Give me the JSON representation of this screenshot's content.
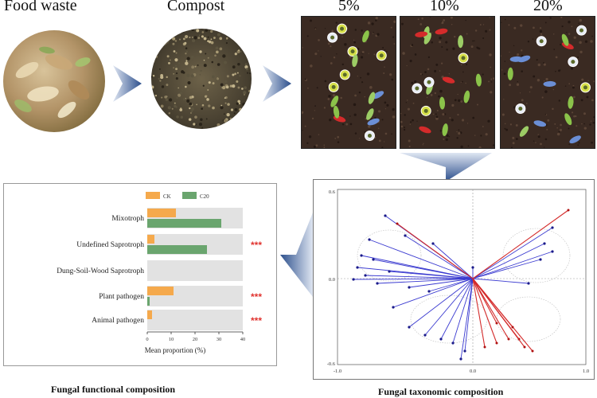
{
  "labels": {
    "food_waste": "Food waste",
    "compost": "Compost",
    "pct_5": "5%",
    "pct_10": "10%",
    "pct_20": "20%"
  },
  "captions": {
    "functional": "Fungal functional composition",
    "taxonomic": "Fungal taxonomic composition"
  },
  "chart_data": [
    {
      "type": "bar",
      "title": "",
      "xlabel": "Mean proportion (%)",
      "legend": [
        "CK",
        "C20"
      ],
      "categories": [
        "Mixotroph",
        "Undefined Saprotroph",
        "Dung-Soil-Wood Saprotroph",
        "Plant pathogen",
        "Animal pathogen"
      ],
      "series": [
        {
          "name": "CK",
          "values": [
            12,
            3,
            0,
            11,
            2
          ]
        },
        {
          "name": "C20",
          "values": [
            31,
            25,
            0,
            1,
            0
          ]
        }
      ],
      "significance": [
        "",
        "***",
        "",
        "***",
        "***"
      ],
      "xlim": [
        0,
        40
      ],
      "xticks": [
        "0",
        "10",
        "20",
        "30",
        "40"
      ],
      "colors": {
        "CK": "#f5a94c",
        "C20": "#6aa56e",
        "bg": "#e2e2e2"
      }
    },
    {
      "type": "scatter",
      "subtype": "biplot",
      "xlim": [
        -1.0,
        1.0
      ],
      "ylim": [
        -0.6,
        0.6
      ],
      "xticks": [
        "-1.0",
        "0.0",
        "1.0"
      ],
      "yticks": [
        "0.6",
        "0.0",
        "-0.6"
      ]
    }
  ]
}
